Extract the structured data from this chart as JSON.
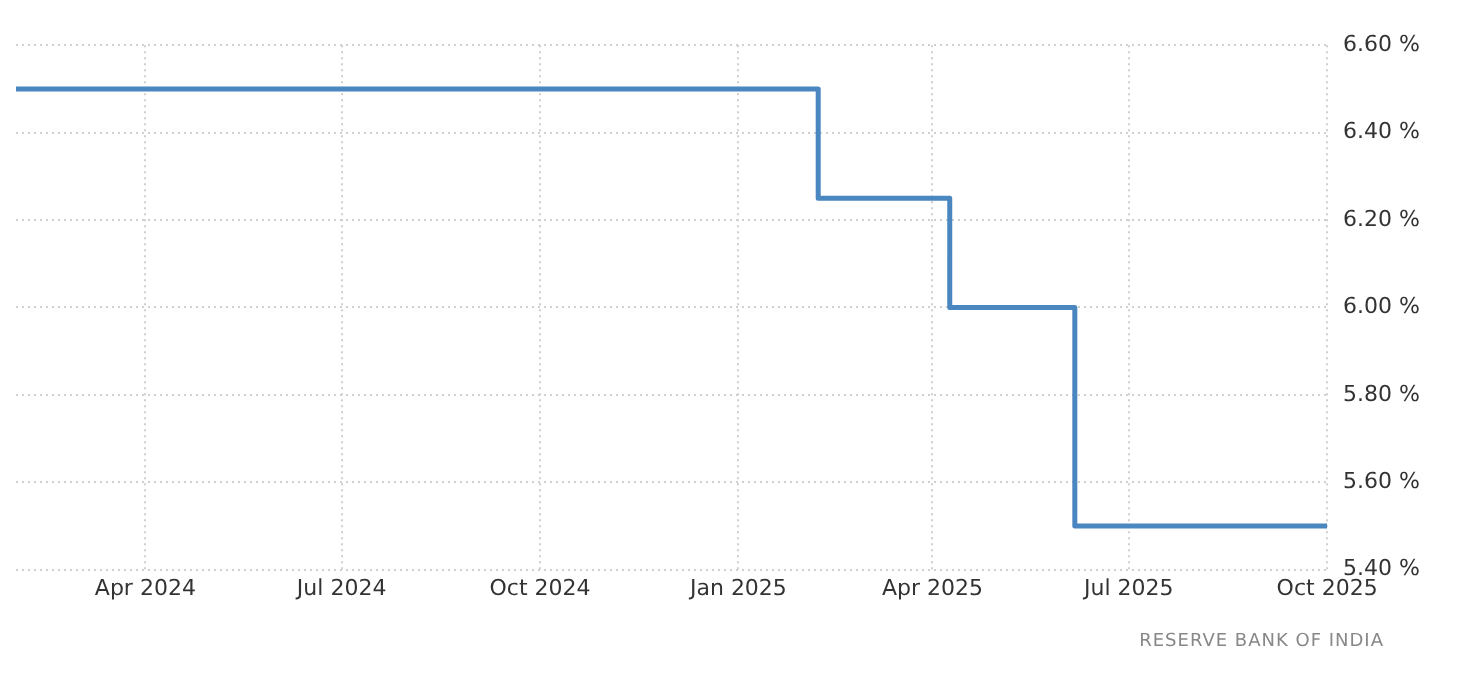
{
  "chart_data": {
    "type": "step",
    "x": [
      "2024-02-01",
      "2025-02-07",
      "2025-04-09",
      "2025-06-06",
      "2025-10-01"
    ],
    "series": [
      {
        "color": "#4a86c0",
        "values": [
          6.5,
          6.25,
          6.0,
          5.5,
          5.5
        ]
      }
    ],
    "xlim": [
      "2024-02-01",
      "2025-10-01"
    ],
    "xticks": [
      {
        "value": "2024-04-01",
        "label": "Apr 2024"
      },
      {
        "value": "2024-07-01",
        "label": "Jul 2024"
      },
      {
        "value": "2024-10-01",
        "label": "Oct 2024"
      },
      {
        "value": "2025-01-01",
        "label": "Jan 2025"
      },
      {
        "value": "2025-04-01",
        "label": "Apr 2025"
      },
      {
        "value": "2025-07-01",
        "label": "Jul 2025"
      },
      {
        "value": "2025-10-01",
        "label": "Oct 2025"
      }
    ],
    "ylim": [
      5.4,
      6.6
    ],
    "yticks": [
      {
        "value": 5.4,
        "label": "5.40 %"
      },
      {
        "value": 5.6,
        "label": "5.60 %"
      },
      {
        "value": 5.8,
        "label": "5.80 %"
      },
      {
        "value": 6.0,
        "label": "6.00 %"
      },
      {
        "value": 6.2,
        "label": "6.20 %"
      },
      {
        "value": 6.4,
        "label": "6.40 %"
      },
      {
        "value": 6.6,
        "label": "6.60 %"
      }
    ],
    "grid": true,
    "legend": false,
    "marker": "none",
    "line_style": "solid",
    "annotations": [
      "RESERVE BANK OF INDIA"
    ]
  }
}
